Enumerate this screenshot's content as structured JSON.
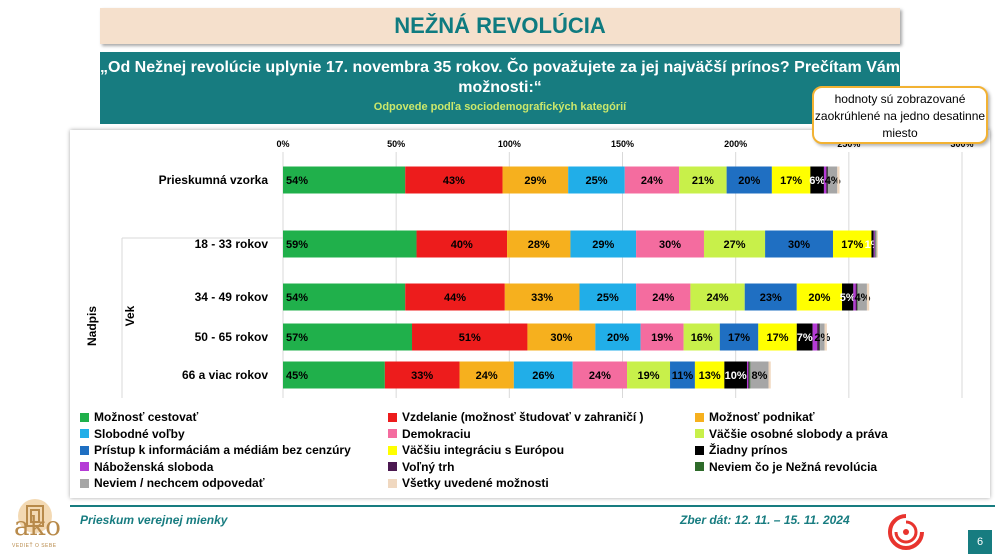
{
  "title": "NEŽNÁ REVOLÚCIA",
  "question": "„Od Nežnej revolúcie uplynie 17. novembra 35 rokov. Čo považujete za jej najväčší prínos? Prečítam Vám možnosti:“",
  "subtitle": "Odpovede podľa sociodemografických kategórií",
  "note": "hodnoty sú zobrazované zaokrúhlené na jedno desatinne miesto",
  "footer": {
    "left": "Prieskum verejnej mienky",
    "right": "Zber dát: 12. 11. – 15. 11. 2024",
    "page": "6",
    "logo_text": "ako",
    "logo_sub": "VEDIEŤ O SEBE"
  },
  "chart_data": {
    "type": "bar",
    "orientation": "horizontal",
    "stacked": true,
    "xlim": [
      0,
      300
    ],
    "x_ticks": [
      "0%",
      "50%",
      "100%",
      "150%",
      "200%",
      "250%",
      "300%"
    ],
    "grid": true,
    "axis_group_labels": [
      "Nadpis",
      "Vek"
    ],
    "categories": [
      "Prieskumná vzorka",
      "18 - 33 rokov",
      "34 - 49 rokov",
      "50 - 65 rokov",
      "66 a viac rokov"
    ],
    "series": [
      {
        "name": "Možnosť cestovať",
        "color": "#20b04b",
        "values": [
          54,
          59,
          54,
          57,
          45
        ],
        "labels": [
          "54%",
          "59%",
          "54%",
          "57%",
          "45%"
        ]
      },
      {
        "name": "Vzdelanie (možnosť študovať v zahraničí )",
        "color": "#ed1c1c",
        "values": [
          43,
          40,
          44,
          51,
          33
        ],
        "labels": [
          "43%",
          "40%",
          "44%",
          "51%",
          "33%"
        ]
      },
      {
        "name": "Možnosť podnikať",
        "color": "#f6b01e",
        "values": [
          29,
          28,
          33,
          30,
          24
        ],
        "labels": [
          "29%",
          "28%",
          "33%",
          "30%",
          "24%"
        ]
      },
      {
        "name": "Slobodné voľby",
        "color": "#21aee8",
        "values": [
          25,
          29,
          25,
          20,
          26
        ],
        "labels": [
          "25%",
          "29%",
          "25%",
          "20%",
          "26%"
        ]
      },
      {
        "name": "Demokraciu",
        "color": "#f46c9f",
        "values": [
          24,
          30,
          24,
          19,
          24
        ],
        "labels": [
          "24%",
          "30%",
          "24%",
          "19%",
          "24%"
        ]
      },
      {
        "name": "Väčšie osobné slobody a práva",
        "color": "#c8f04a",
        "values": [
          21,
          27,
          24,
          16,
          19
        ],
        "labels": [
          "21%",
          "27%",
          "24%",
          "16%",
          "19%"
        ]
      },
      {
        "name": "Prístup k informáciám a médiám bez cenzúry",
        "color": "#1f6fc2",
        "values": [
          20,
          30,
          23,
          17,
          11
        ],
        "labels": [
          "20%",
          "30%",
          "23%",
          "17%",
          "11%"
        ]
      },
      {
        "name": "Väčšiu integráciu s Európou",
        "color": "#ffff00",
        "values": [
          17,
          17,
          20,
          17,
          13
        ],
        "labels": [
          "17%",
          "17%",
          "20%",
          "17%",
          "13%"
        ]
      },
      {
        "name": "Žiadny prínos",
        "color": "#000000",
        "values": [
          6,
          1,
          5,
          7,
          10
        ],
        "labels": [
          "6%",
          "1%",
          "5%",
          "7%",
          "10%"
        ]
      },
      {
        "name": "Náboženská sloboda",
        "color": "#b53bd6",
        "values": [
          1,
          0.4,
          1,
          2,
          0.5
        ],
        "labels": [
          "",
          "",
          "",
          "",
          ""
        ]
      },
      {
        "name": "Voľný trh",
        "color": "#4b1850",
        "values": [
          0.6,
          0.3,
          0.7,
          1,
          0.5
        ],
        "labels": [
          "",
          "",
          "",
          "",
          ""
        ]
      },
      {
        "name": "Neviem čo je Nežná revolúcia",
        "color": "#2e6b2a",
        "values": [
          0.3,
          0.2,
          0.3,
          0.3,
          0.5
        ],
        "labels": [
          "",
          "",
          "",
          "",
          ""
        ]
      },
      {
        "name": "Neviem / nechcem odpovedať",
        "color": "#a6a6a6",
        "values": [
          4,
          0.5,
          4,
          2,
          8
        ],
        "labels": [
          "4%",
          "",
          "4%",
          "2%",
          "8%"
        ]
      },
      {
        "name": "Všetky uvedené možnosti",
        "color": "#f0d8c0",
        "values": [
          1,
          0.5,
          1,
          1,
          1
        ],
        "labels": [
          "",
          "",
          "",
          "",
          ""
        ]
      }
    ]
  }
}
